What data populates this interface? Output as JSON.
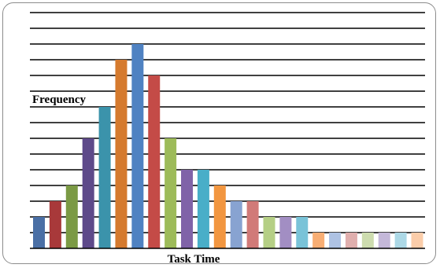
{
  "chart_data": {
    "type": "bar",
    "ylabel": "Frequency",
    "xlabel": "Task Time",
    "ylim": [
      0,
      13
    ],
    "grid": true,
    "legend": "none",
    "values": [
      2,
      3,
      4,
      7,
      9,
      12,
      13,
      11,
      7,
      5,
      5,
      4,
      3,
      3,
      2,
      2,
      2,
      1,
      1,
      1,
      1,
      1,
      1,
      1
    ],
    "colors": [
      "#4a6fa5",
      "#a8393a",
      "#7b9a44",
      "#5e4a8a",
      "#3b93ab",
      "#d57a2e",
      "#4f82c2",
      "#c44b47",
      "#9dbb59",
      "#8063a8",
      "#49aec8",
      "#f29640",
      "#88a3d1",
      "#d17a78",
      "#b5cf85",
      "#a28ec3",
      "#79c3d8",
      "#f8ae74",
      "#aec2e3",
      "#e0afae",
      "#cddcaf",
      "#c4b8d9",
      "#acd8e6",
      "#fbcdaa"
    ]
  }
}
